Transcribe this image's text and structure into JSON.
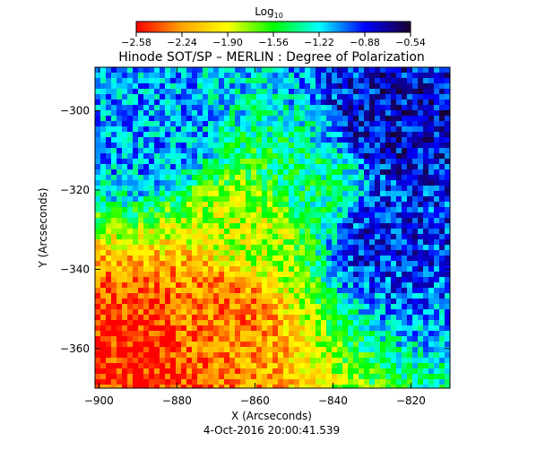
{
  "chart_data": {
    "type": "heatmap",
    "title": "Hinode SOT/SP – MERLIN : Degree of Polarization",
    "xlabel": "X (Arcseconds)",
    "ylabel": "Y (Arcseconds)",
    "xlim": [
      -901,
      -810
    ],
    "ylim": [
      -370,
      -289
    ],
    "x_ticks": [
      "−900",
      "−880",
      "−860",
      "−840",
      "−820"
    ],
    "y_ticks": [
      "−300",
      "−320",
      "−340",
      "−360"
    ],
    "x_tick_values": [
      -900,
      -880,
      -860,
      -840,
      -820
    ],
    "y_tick_values": [
      -300,
      -320,
      -340,
      -360
    ],
    "colorbar": {
      "label_main": "Log",
      "label_sub": "10",
      "range": [
        -2.58,
        -0.54
      ],
      "ticks": [
        "−2.58",
        "−2.24",
        "−1.90",
        "−1.56",
        "−1.22",
        "−0.88",
        "−0.54"
      ],
      "colors": [
        "#ff0000",
        "#ffa500",
        "#ffff00",
        "#00ff00",
        "#00ffff",
        "#0000ff",
        "#1a0030"
      ]
    },
    "field_description_points": [
      {
        "x": -890,
        "y": -360,
        "value": -2.5
      },
      {
        "x": -870,
        "y": -350,
        "value": -2.3
      },
      {
        "x": -860,
        "y": -330,
        "value": -1.8
      },
      {
        "x": -845,
        "y": -320,
        "value": -1.4
      },
      {
        "x": -825,
        "y": -305,
        "value": -0.8
      },
      {
        "x": -828,
        "y": -330,
        "value": -0.9
      },
      {
        "x": -887,
        "y": -305,
        "value": -1.1
      }
    ]
  },
  "footer": {
    "timestamp": "4-Oct-2016 20:00:41.539"
  }
}
